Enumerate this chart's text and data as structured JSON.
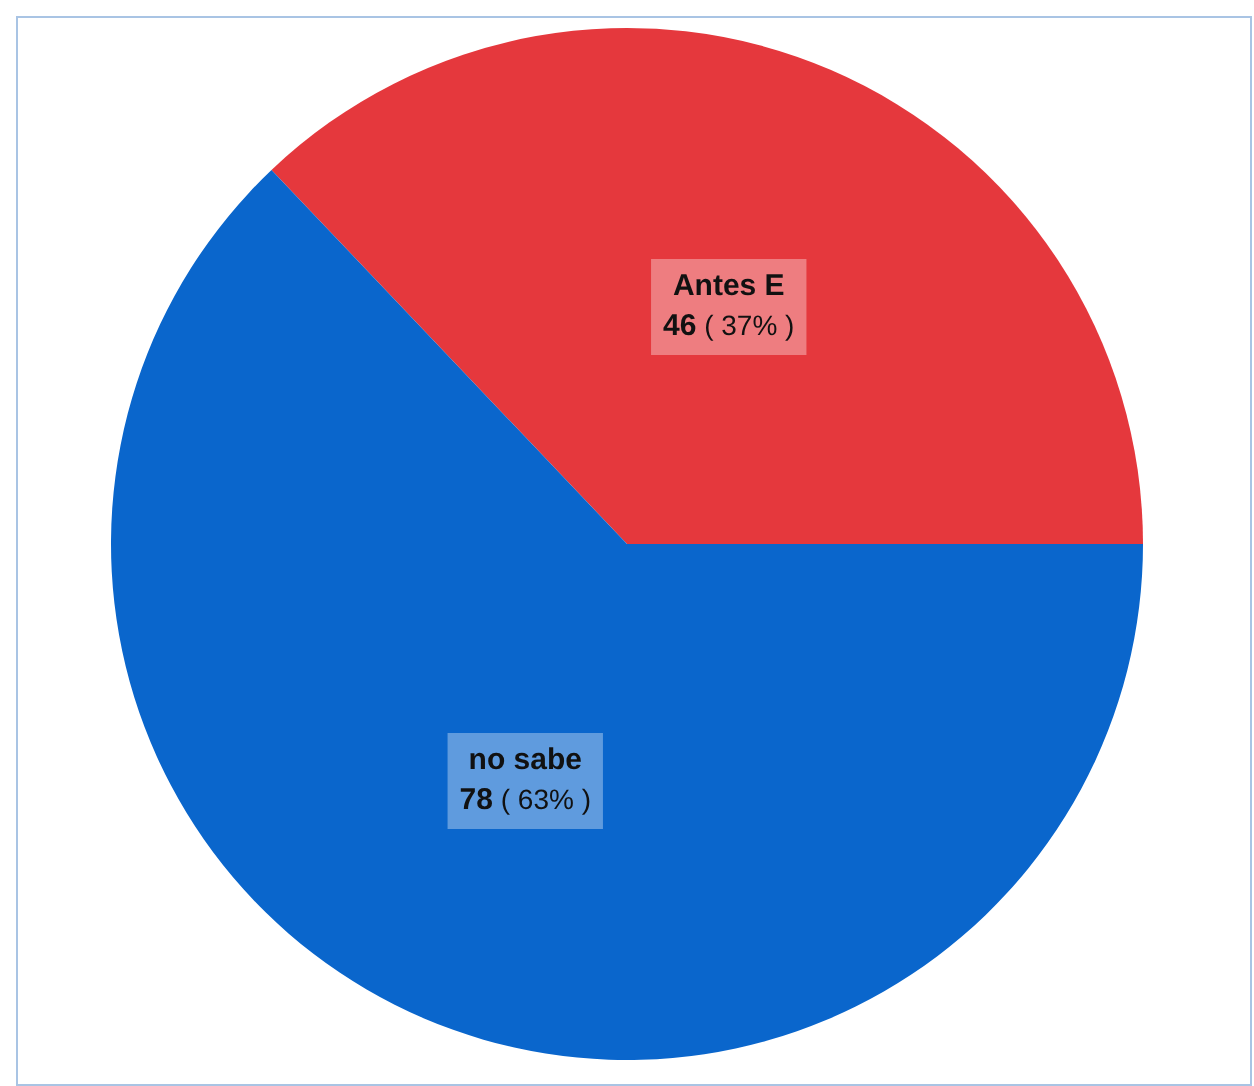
{
  "chart_data": {
    "type": "pie",
    "categories": [
      "Antes E",
      "no sabe"
    ],
    "values": [
      46,
      78
    ],
    "colors": [
      "#e5383d",
      "#0a66cc"
    ],
    "value_labels": [
      "46 ( 37% )",
      "78 ( 63% )"
    ],
    "legend": false
  }
}
